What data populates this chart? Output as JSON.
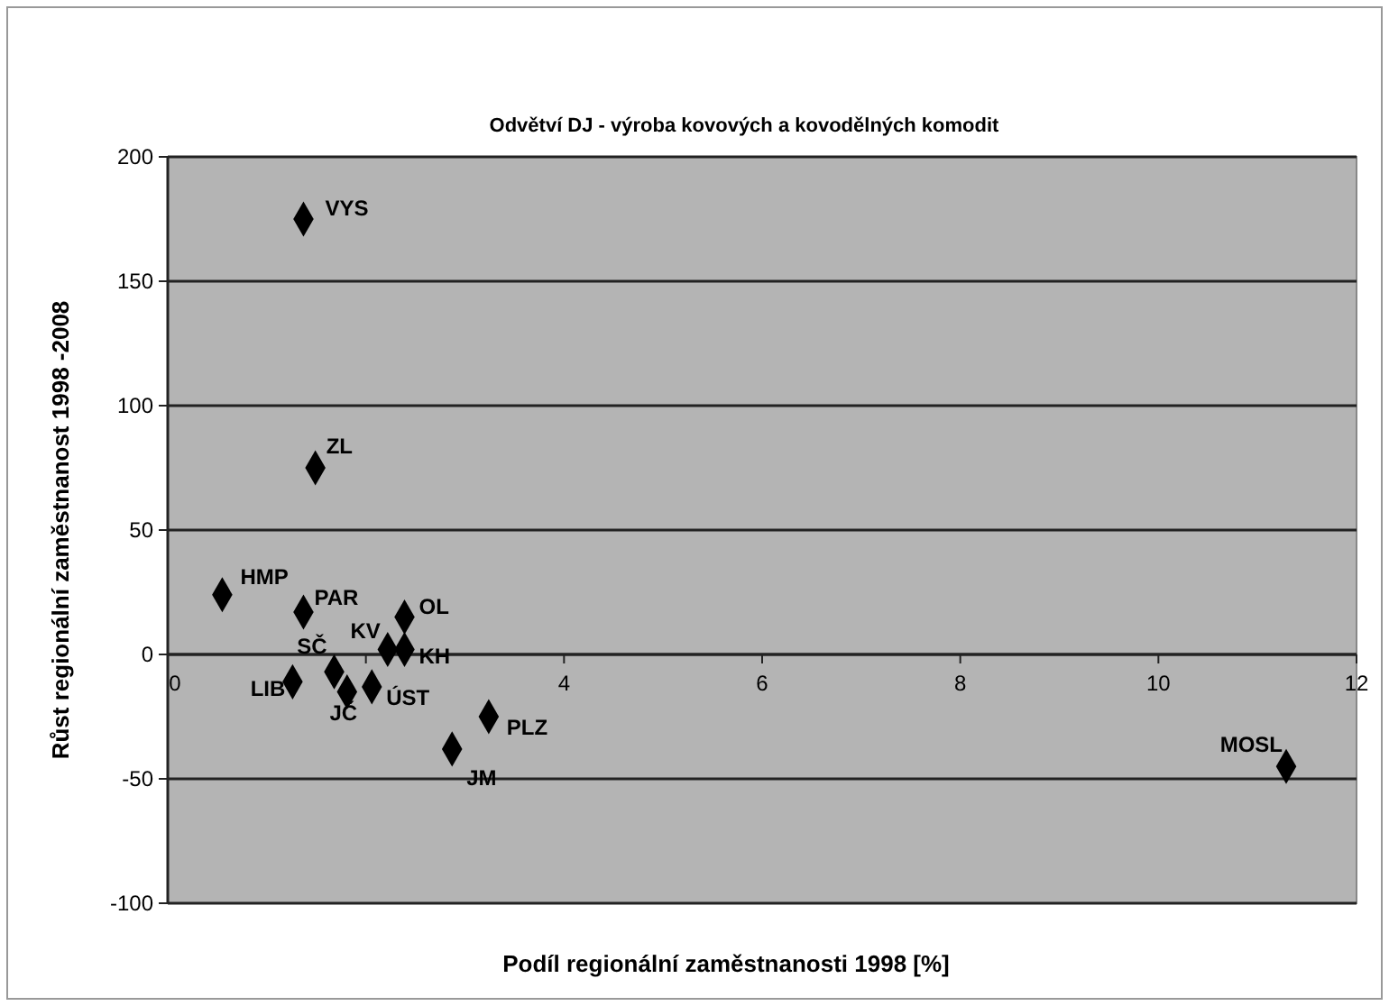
{
  "chart_data": {
    "type": "scatter",
    "title": "Odvětví DJ - výroba kovových a kovodělných komodit",
    "xlabel": "Podíl regionální zaměstnanosti 1998 [%]",
    "ylabel": "Růst regionální zaměstnanost 1998 -2008",
    "x": [
      1.37,
      1.49,
      0.55,
      1.37,
      2.39,
      2.22,
      2.39,
      1.68,
      1.26,
      1.81,
      2.06,
      3.24,
      2.87,
      11.29
    ],
    "values": [
      175,
      75,
      24,
      17,
      15,
      2,
      2,
      -7,
      -11,
      -15,
      -13,
      -25,
      -38,
      -45
    ],
    "color": "#000000",
    "marker": "diamond",
    "grid": "y",
    "xlim": [
      0,
      12
    ],
    "xticks": [
      0,
      {
        "value": 2,
        "label": null
      },
      4,
      6,
      8,
      10,
      12
    ],
    "ylim": [
      -100,
      200
    ],
    "yticks": [
      -100,
      -50,
      0,
      50,
      100,
      150,
      200
    ],
    "annotations": [
      {
        "text": "VYS",
        "x": 1.37,
        "y": 175
      },
      {
        "text": "ZL",
        "x": 1.49,
        "y": 75
      },
      {
        "text": "HMP",
        "x": 0.55,
        "y": 24
      },
      {
        "text": "PAR",
        "x": 1.37,
        "y": 17
      },
      {
        "text": "OL",
        "x": 2.39,
        "y": 15
      },
      {
        "text": "KV",
        "x": 2.22,
        "y": 2
      },
      {
        "text": "KH",
        "x": 2.39,
        "y": 2
      },
      {
        "text": "SČ",
        "x": 1.68,
        "y": -7
      },
      {
        "text": "LIB",
        "x": 1.26,
        "y": -11
      },
      {
        "text": "JČ",
        "x": 1.81,
        "y": -15
      },
      {
        "text": "ÚST",
        "x": 2.06,
        "y": -13
      },
      {
        "text": "PLZ",
        "x": 3.24,
        "y": -25
      },
      {
        "text": "JM",
        "x": 2.87,
        "y": -38
      },
      {
        "text": "MOSL",
        "x": 11.29,
        "y": -45
      }
    ]
  }
}
